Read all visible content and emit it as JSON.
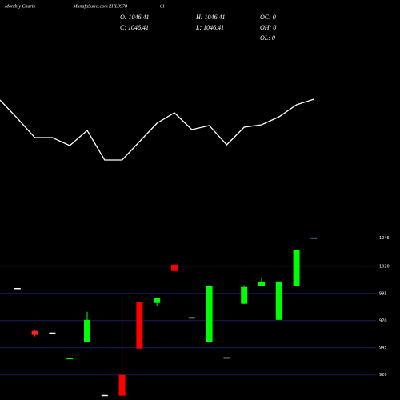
{
  "header": {
    "title": "Monthly Charts",
    "site": "- MunafaSutra.com",
    "symbol": "ZHL0978",
    "extra": "61"
  },
  "ohlc": {
    "o": "O: 1046.41",
    "h": "H: 1046.41",
    "oc": "OC: 0",
    "c": "C: 1046.41",
    "l": "L: 1046.41",
    "oh": "OH: 0",
    "ol": "OL: 0"
  },
  "chart_data": [
    {
      "type": "line",
      "color": "#ffffff",
      "ylim": [
        0,
        100
      ],
      "values": [
        85,
        62,
        38,
        38,
        28,
        47,
        10,
        10,
        33,
        56,
        69,
        48,
        53,
        29,
        51,
        54,
        64,
        79,
        86
      ]
    },
    {
      "type": "candlestick",
      "ylim": [
        897,
        1050
      ],
      "yticks": [
        1046,
        1020,
        995,
        970,
        945,
        920
      ],
      "grid": true,
      "grid_color": "#1c1c5c",
      "open": [
        1000,
        960.5,
        959,
        935.5,
        950.2,
        901.6,
        920,
        987,
        986.2,
        1021.5,
        973,
        950.2,
        936.2,
        985.5,
        1001.6,
        970.7,
        1001.6,
        1046.4
      ],
      "high": [
        1000,
        961.9,
        959,
        935.5,
        978.1,
        901.6,
        991.3,
        987,
        990.6,
        1021.5,
        973,
        1001.6,
        936.2,
        1002.4,
        1009.7,
        1006,
        1034.7,
        1046.4
      ],
      "low": [
        1000,
        955.3,
        959,
        935.5,
        950.2,
        901.6,
        900.9,
        944.3,
        983.2,
        1015.6,
        973,
        950.2,
        936.2,
        985.5,
        1001.6,
        970.7,
        1001.6,
        1046.4
      ],
      "close": [
        1000,
        956.8,
        959,
        935.5,
        970.7,
        901.6,
        900.9,
        944.3,
        990.6,
        1015.6,
        973,
        1001.6,
        936.2,
        1000.9,
        1006,
        1006,
        1034.7,
        1046.4
      ],
      "colors": [
        "#ffffff",
        "#ff2020",
        "#ffffff",
        "#00ff00",
        "#00ff00",
        "#ffffff",
        "#ff0000",
        "#ff0000",
        "#00ff00",
        "#ff0000",
        "#ffffff",
        "#00ff00",
        "#ffffff",
        "#00ff00",
        "#00ff00",
        "#00ff00",
        "#00ff00",
        "#66ccff"
      ]
    }
  ]
}
